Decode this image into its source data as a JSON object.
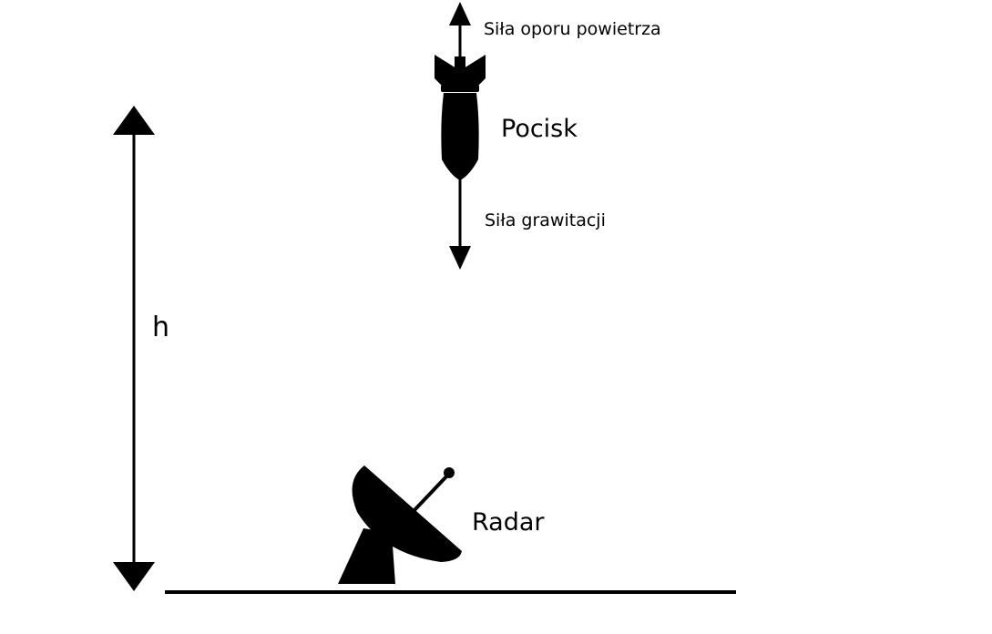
{
  "labels": {
    "air_resistance": "Siła oporu powietrza",
    "projectile": "Pocisk",
    "gravity": "Siła grawitacji",
    "height": "h",
    "radar": "Radar"
  },
  "colors": {
    "ink": "#000000",
    "background": "#ffffff"
  },
  "icons": {
    "projectile": "bomb-icon",
    "radar": "satellite-dish-icon"
  }
}
